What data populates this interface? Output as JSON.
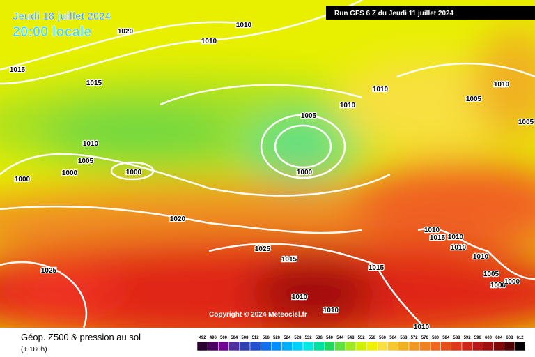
{
  "header": {
    "date": "Jeudi 18 juillet 2024",
    "time": "20:00 locale",
    "run": "Run GFS 6 Z du Jeudi 11 juillet 2024"
  },
  "isobar_labels": [
    "1010",
    "1020",
    "1010",
    "1015",
    "1015",
    "1010",
    "1010",
    "1010",
    "1005",
    "1005",
    "1005",
    "1010",
    "1005",
    "1000",
    "1000",
    "1000",
    "1000",
    "1020",
    "1010",
    "1015",
    "1010",
    "1010",
    "1025",
    "1015",
    "1015",
    "1025",
    "1010",
    "1005",
    "1000",
    "1000",
    "1010",
    "1010",
    "1010"
  ],
  "copyright": "Copyright © 2024 Meteociel.fr",
  "footer": {
    "title": "Géop. Z500 & pression au sol",
    "lead": "(+ 180h)",
    "scale": [
      492,
      496,
      500,
      504,
      508,
      512,
      516,
      520,
      524,
      528,
      532,
      536,
      540,
      544,
      548,
      552,
      556,
      560,
      564,
      568,
      572,
      576,
      580,
      584,
      588,
      592,
      596,
      600,
      604,
      608,
      612
    ]
  }
}
